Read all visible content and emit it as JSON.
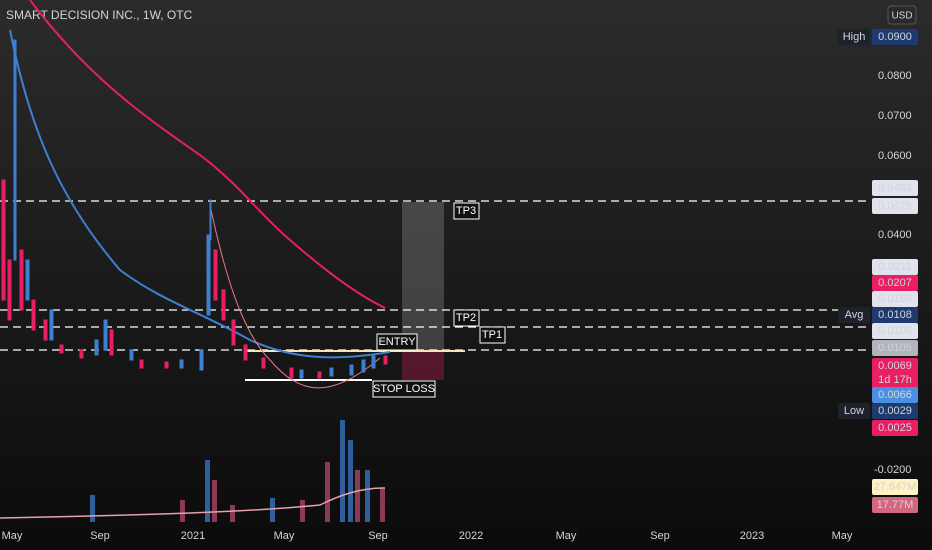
{
  "header": {
    "symbol": "SMART DECISION INC., 1W, OTC",
    "currency": "USD"
  },
  "price_axis": [
    "0.0800",
    "0.0700",
    "0.0600",
    "0.0400",
    "-0.0200"
  ],
  "price_badges": [
    {
      "label": "High",
      "value": "0.0900"
    },
    {
      "value": "0.0483"
    },
    {
      "value": "0.0475"
    },
    {
      "value": "0.0211"
    },
    {
      "value": "0.0207"
    },
    {
      "value": "0.0166"
    },
    {
      "label": "Avg",
      "value": "0.0108"
    },
    {
      "value": "0.0106"
    },
    {
      "value": "0.0105"
    },
    {
      "value": "0.0069",
      "countdown": "1d 17h"
    },
    {
      "value": "0.0066"
    },
    {
      "label": "Low",
      "value": "0.0029"
    },
    {
      "value": "0.0025"
    },
    {
      "value": "27.647M"
    },
    {
      "value": "17.77M"
    }
  ],
  "time_axis": [
    "May",
    "Sep",
    "2021",
    "May",
    "Sep",
    "2022",
    "May",
    "Sep",
    "2023",
    "May"
  ],
  "annotations": [
    "TP3",
    "TP2",
    "TP1",
    "ENTRY",
    "STOP LOSS"
  ]
}
